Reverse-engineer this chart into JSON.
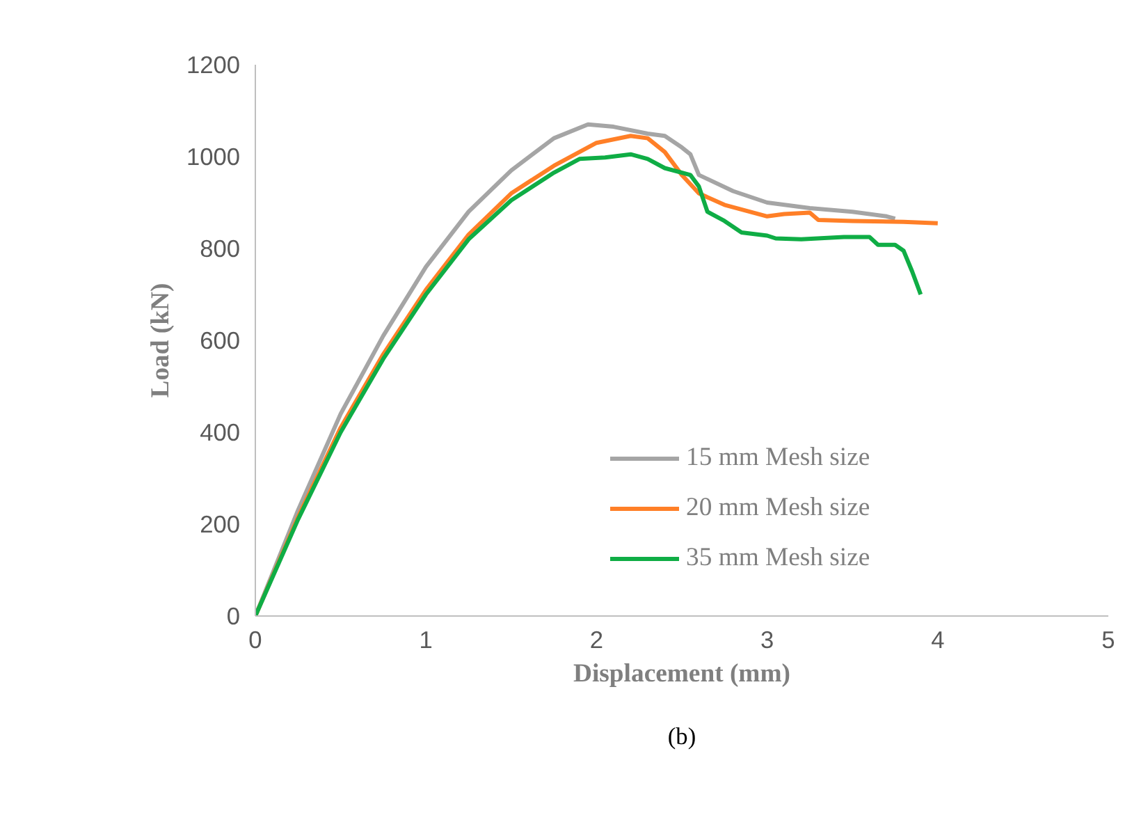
{
  "chart_data": {
    "type": "line",
    "xlabel": "Displacement (mm)",
    "ylabel": "Load (kN)",
    "annotations": [
      "(b)"
    ],
    "xlim": [
      0,
      5
    ],
    "ylim": [
      0,
      1200
    ],
    "xticks": [
      0,
      1,
      2,
      3,
      4,
      5
    ],
    "yticks": [
      0,
      200,
      400,
      600,
      800,
      1000,
      1200
    ],
    "grid": false,
    "legend": "right",
    "marker": "none",
    "line_style": "solid",
    "series": [
      {
        "name": "15 mm Mesh size",
        "color": "#a5a5a5",
        "x": [
          0,
          0.25,
          0.5,
          0.75,
          1,
          1.25,
          1.5,
          1.75,
          1.95,
          2.1,
          2.3,
          2.4,
          2.5,
          2.55,
          2.6,
          2.8,
          3.0,
          3.25,
          3.5,
          3.7,
          3.75
        ],
        "values": [
          0,
          230,
          440,
          610,
          760,
          880,
          970,
          1040,
          1070,
          1065,
          1050,
          1045,
          1020,
          1005,
          960,
          925,
          900,
          888,
          880,
          870,
          865
        ]
      },
      {
        "name": "20 mm Mesh size",
        "color": "#ff7f27",
        "x": [
          0,
          0.25,
          0.5,
          0.75,
          1,
          1.25,
          1.5,
          1.75,
          2,
          2.2,
          2.3,
          2.4,
          2.5,
          2.6,
          2.75,
          3,
          3.1,
          3.25,
          3.3,
          3.5,
          3.8,
          4
        ],
        "values": [
          0,
          215,
          410,
          570,
          710,
          830,
          920,
          980,
          1030,
          1045,
          1040,
          1010,
          960,
          920,
          895,
          870,
          875,
          878,
          862,
          860,
          858,
          855
        ]
      },
      {
        "name": "35 mm Mesh size",
        "color": "#0fad45",
        "x": [
          0,
          0.25,
          0.5,
          0.75,
          1,
          1.25,
          1.5,
          1.75,
          1.9,
          2.05,
          2.2,
          2.3,
          2.4,
          2.55,
          2.6,
          2.65,
          2.75,
          2.85,
          3.0,
          3.05,
          3.2,
          3.45,
          3.6,
          3.65,
          3.75,
          3.8,
          3.85,
          3.9
        ],
        "values": [
          0,
          210,
          400,
          560,
          700,
          820,
          905,
          965,
          995,
          998,
          1005,
          995,
          975,
          960,
          935,
          880,
          860,
          835,
          828,
          822,
          820,
          825,
          825,
          808,
          808,
          795,
          750,
          700
        ]
      }
    ]
  }
}
